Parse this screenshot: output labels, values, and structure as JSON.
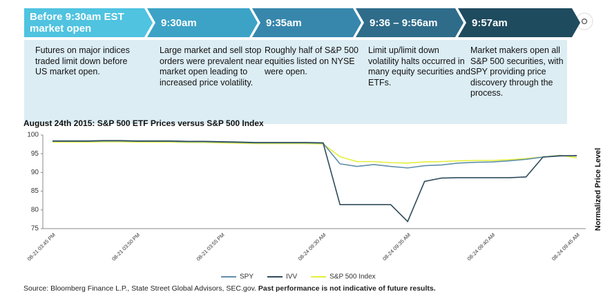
{
  "timeline": {
    "steps": [
      {
        "label": "Before 9:30am EST market open",
        "text": "Futures on major indices traded limit down before US market open."
      },
      {
        "label": "9:30am",
        "text": "Large market and sell stop orders were prevalent near market open leading to increased price volatility."
      },
      {
        "label": "9:35am",
        "text": "Roughly half of S&P 500 equities listed on NYSE were open."
      },
      {
        "label": "9:36 – 9:56am",
        "text": "Limit up/limit down volatility halts occurred in many equity securities and ETFs."
      },
      {
        "label": "9:57am",
        "text": "Market makers open all S&P 500 securities, with SPY providing price discovery through the process."
      }
    ]
  },
  "chart_data": {
    "type": "line",
    "title": "August 24th 2015: S&P 500 ETF Prices versus S&P 500 Index",
    "y_label": "Normalized Price Level",
    "categories": [
      "08-21 03:45 PM",
      null,
      null,
      null,
      null,
      "08-21 03:50 PM",
      null,
      null,
      null,
      null,
      "08-21 03:55 PM",
      null,
      null,
      null,
      null,
      null,
      "08-24 09:30 AM",
      null,
      null,
      null,
      null,
      "08-24 09:35 AM",
      null,
      null,
      null,
      null,
      "08-24 09:40 AM",
      null,
      null,
      null,
      null,
      "08-24 09:45 AM"
    ],
    "series": [
      {
        "name": "SPY",
        "color": "#5f8fa8",
        "values": [
          98.3,
          98.3,
          98.3,
          98.4,
          98.4,
          98.3,
          98.3,
          98.3,
          98.2,
          98.2,
          98.1,
          98.0,
          97.9,
          97.9,
          97.9,
          97.9,
          97.8,
          92.3,
          91.6,
          92.1,
          91.6,
          91.2,
          91.8,
          92.0,
          92.5,
          92.7,
          92.8,
          93.1,
          93.5,
          94.1,
          94.5,
          94.4
        ]
      },
      {
        "name": "IVV",
        "color": "#2e4a5a",
        "values": [
          98.4,
          98.4,
          98.4,
          98.5,
          98.5,
          98.4,
          98.4,
          98.4,
          98.3,
          98.3,
          98.2,
          98.1,
          98.0,
          98.0,
          98.0,
          98.0,
          97.9,
          81.4,
          81.4,
          81.4,
          81.4,
          76.9,
          87.6,
          88.5,
          88.6,
          88.6,
          88.6,
          88.6,
          88.8,
          94.1,
          94.4,
          94.5
        ]
      },
      {
        "name": "S&P 500 Index",
        "color": "#e3ef3a",
        "values": [
          98.1,
          98.1,
          98.1,
          98.2,
          98.2,
          98.1,
          98.1,
          98.1,
          98.0,
          98.0,
          97.9,
          97.8,
          97.7,
          97.7,
          97.7,
          97.7,
          97.6,
          94.2,
          92.9,
          92.9,
          92.6,
          92.5,
          92.8,
          92.9,
          93.1,
          93.2,
          93.2,
          93.4,
          93.7,
          94.1,
          94.6,
          93.9
        ]
      }
    ],
    "ylim": [
      75,
      100
    ],
    "yticks": [
      75,
      80,
      85,
      90,
      95,
      100
    ],
    "grid": false,
    "legend": "bottom"
  },
  "source": {
    "text": "Source: Bloomberg Finance L.P., State Street Global Advisors, SEC.gov.",
    "note": "Past performance is not indicative of future results."
  }
}
